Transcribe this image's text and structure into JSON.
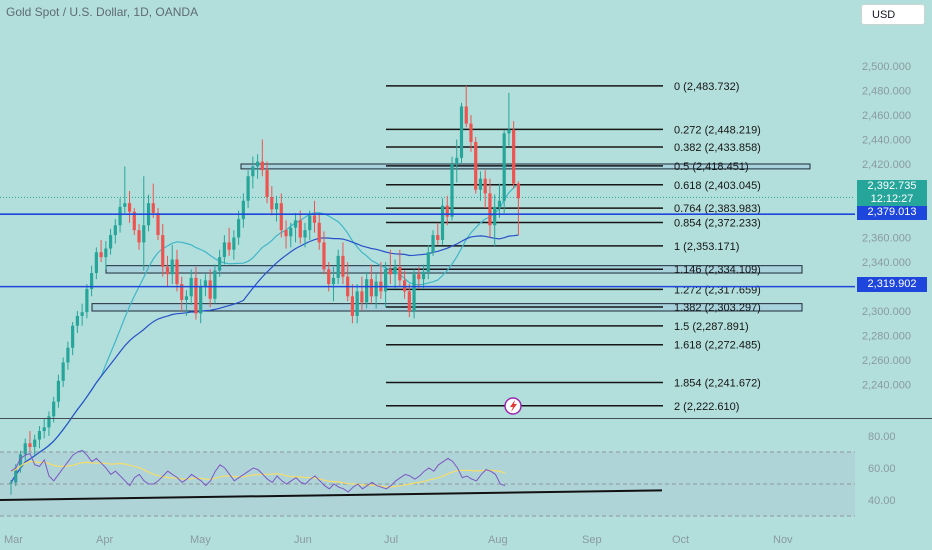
{
  "header": {
    "symbol_title": "Gold Spot / U.S. Dollar, 1D, OANDA",
    "currency_label": "USD"
  },
  "price_tags": {
    "current_price": "2,392.735",
    "countdown": "12:12:27",
    "line_price_1": "2,379.013",
    "line_price_2": "2,319.902"
  },
  "colors": {
    "background": "#b2dfdb",
    "up_candle": "#26a69a",
    "down_candle": "#ef5350",
    "horizontal_line": "#1e46dc",
    "ma_fast": "#3fb6c9",
    "ma_slow": "#2850c8",
    "rsi_line": "#7e57c2",
    "rsi_ma": "#f5dd6b"
  },
  "chart_data": {
    "type": "candlestick",
    "symbol": "Gold Spot / U.S. Dollar",
    "interval": "1D",
    "source": "OANDA",
    "y_axis_ticks": [
      "2,500.000",
      "2,480.000",
      "2,460.000",
      "2,440.000",
      "2,420.000",
      "2,400.000",
      "2,380.000",
      "2,360.000",
      "2,340.000",
      "2,320.000",
      "2,300.000",
      "2,280.000",
      "2,260.000",
      "2,240.000"
    ],
    "x_axis_ticks": [
      "Mar",
      "Apr",
      "May",
      "Jun",
      "Jul",
      "Aug",
      "Sep",
      "Oct",
      "Nov"
    ],
    "fib_levels": [
      {
        "label": "0 (2,483.732)",
        "value": 2483.732
      },
      {
        "label": "0.272 (2,448.219)",
        "value": 2448.219
      },
      {
        "label": "0.382 (2,433.858)",
        "value": 2433.858
      },
      {
        "label": "0.5 (2,418.451)",
        "value": 2418.451
      },
      {
        "label": "0.618 (2,403.045)",
        "value": 2403.045
      },
      {
        "label": "0.764 (2,383.983)",
        "value": 2383.983
      },
      {
        "label": "0.854 (2,372.233)",
        "value": 2372.233
      },
      {
        "label": "1 (2,353.171)",
        "value": 2353.171
      },
      {
        "label": "1.146 (2,334.109)",
        "value": 2334.109
      },
      {
        "label": "1.272 (2,317.659)",
        "value": 2317.659
      },
      {
        "label": "1.382 (2,303.297)",
        "value": 2303.297
      },
      {
        "label": "1.5 (2,287.891)",
        "value": 2287.891
      },
      {
        "label": "1.618 (2,272.485)",
        "value": 2272.485
      },
      {
        "label": "1.854 (2,241.672)",
        "value": 2241.672
      },
      {
        "label": "2 (2,222.610)",
        "value": 2222.61
      }
    ],
    "horizontal_lines": [
      2379.013,
      2319.902
    ],
    "current_price": 2392.735,
    "zones": [
      {
        "low": 2416,
        "high": 2420
      },
      {
        "low": 2331,
        "high": 2337
      },
      {
        "low": 2300,
        "high": 2306
      }
    ],
    "candles": [
      [
        2159,
        2162,
        2150,
        2160
      ],
      [
        2160,
        2175,
        2157,
        2172
      ],
      [
        2172,
        2186,
        2168,
        2183
      ],
      [
        2183,
        2196,
        2178,
        2192
      ],
      [
        2192,
        2202,
        2185,
        2189
      ],
      [
        2189,
        2199,
        2182,
        2195
      ],
      [
        2195,
        2206,
        2188,
        2202
      ],
      [
        2202,
        2212,
        2196,
        2205
      ],
      [
        2205,
        2218,
        2198,
        2214
      ],
      [
        2214,
        2230,
        2209,
        2226
      ],
      [
        2226,
        2248,
        2221,
        2243
      ],
      [
        2243,
        2262,
        2238,
        2258
      ],
      [
        2258,
        2275,
        2252,
        2270
      ],
      [
        2270,
        2291,
        2264,
        2288
      ],
      [
        2288,
        2300,
        2282,
        2296
      ],
      [
        2296,
        2306,
        2288,
        2299
      ],
      [
        2299,
        2322,
        2294,
        2318
      ],
      [
        2318,
        2337,
        2312,
        2331
      ],
      [
        2331,
        2352,
        2326,
        2348
      ],
      [
        2348,
        2358,
        2340,
        2344
      ],
      [
        2344,
        2357,
        2334,
        2351
      ],
      [
        2351,
        2367,
        2346,
        2362
      ],
      [
        2362,
        2375,
        2355,
        2370
      ],
      [
        2370,
        2392,
        2364,
        2385
      ],
      [
        2385,
        2418,
        2380,
        2388
      ],
      [
        2388,
        2398,
        2372,
        2381
      ],
      [
        2381,
        2384,
        2362,
        2366
      ],
      [
        2366,
        2371,
        2350,
        2356
      ],
      [
        2356,
        2410,
        2333,
        2370
      ],
      [
        2370,
        2395,
        2365,
        2388
      ],
      [
        2388,
        2404,
        2376,
        2380
      ],
      [
        2380,
        2384,
        2358,
        2362
      ],
      [
        2362,
        2371,
        2328,
        2336
      ],
      [
        2336,
        2345,
        2320,
        2330
      ],
      [
        2330,
        2354,
        2322,
        2342
      ],
      [
        2342,
        2350,
        2316,
        2322
      ],
      [
        2322,
        2328,
        2300,
        2309
      ],
      [
        2309,
        2317,
        2296,
        2312
      ],
      [
        2312,
        2334,
        2305,
        2327
      ],
      [
        2327,
        2336,
        2293,
        2298
      ],
      [
        2298,
        2326,
        2290,
        2320
      ],
      [
        2320,
        2330,
        2312,
        2325
      ],
      [
        2325,
        2334,
        2303,
        2310
      ],
      [
        2310,
        2338,
        2306,
        2333
      ],
      [
        2333,
        2350,
        2328,
        2344
      ],
      [
        2344,
        2362,
        2338,
        2356
      ],
      [
        2356,
        2368,
        2345,
        2350
      ],
      [
        2350,
        2366,
        2342,
        2360
      ],
      [
        2360,
        2382,
        2354,
        2375
      ],
      [
        2375,
        2396,
        2368,
        2390
      ],
      [
        2390,
        2415,
        2384,
        2410
      ],
      [
        2410,
        2426,
        2400,
        2418
      ],
      [
        2418,
        2428,
        2408,
        2422
      ],
      [
        2422,
        2440,
        2410,
        2415
      ],
      [
        2415,
        2422,
        2388,
        2393
      ],
      [
        2393,
        2402,
        2378,
        2383
      ],
      [
        2383,
        2394,
        2373,
        2388
      ],
      [
        2388,
        2396,
        2360,
        2366
      ],
      [
        2366,
        2374,
        2351,
        2361
      ],
      [
        2361,
        2372,
        2352,
        2368
      ],
      [
        2368,
        2380,
        2356,
        2374
      ],
      [
        2374,
        2382,
        2355,
        2360
      ],
      [
        2360,
        2372,
        2352,
        2366
      ],
      [
        2366,
        2382,
        2358,
        2378
      ],
      [
        2378,
        2390,
        2364,
        2372
      ],
      [
        2372,
        2380,
        2350,
        2356
      ],
      [
        2356,
        2365,
        2330,
        2334
      ],
      [
        2334,
        2340,
        2316,
        2322
      ],
      [
        2322,
        2336,
        2308,
        2327
      ],
      [
        2327,
        2350,
        2322,
        2345
      ],
      [
        2345,
        2356,
        2322,
        2328
      ],
      [
        2328,
        2340,
        2308,
        2312
      ],
      [
        2312,
        2322,
        2290,
        2296
      ],
      [
        2296,
        2322,
        2290,
        2316
      ],
      [
        2316,
        2328,
        2300,
        2307
      ],
      [
        2307,
        2332,
        2302,
        2326
      ],
      [
        2326,
        2338,
        2306,
        2312
      ],
      [
        2312,
        2330,
        2302,
        2324
      ],
      [
        2324,
        2340,
        2310,
        2316
      ],
      [
        2316,
        2340,
        2303,
        2334
      ],
      [
        2334,
        2350,
        2322,
        2330
      ],
      [
        2330,
        2342,
        2318,
        2336
      ],
      [
        2336,
        2350,
        2320,
        2325
      ],
      [
        2325,
        2333,
        2310,
        2316
      ],
      [
        2316,
        2322,
        2295,
        2300
      ],
      [
        2300,
        2334,
        2294,
        2330
      ],
      [
        2330,
        2336,
        2318,
        2326
      ],
      [
        2326,
        2338,
        2318,
        2332
      ],
      [
        2332,
        2354,
        2326,
        2348
      ],
      [
        2348,
        2366,
        2345,
        2362
      ],
      [
        2362,
        2372,
        2354,
        2358
      ],
      [
        2358,
        2392,
        2354,
        2386
      ],
      [
        2386,
        2394,
        2370,
        2377
      ],
      [
        2377,
        2426,
        2374,
        2420
      ],
      [
        2420,
        2440,
        2405,
        2425
      ],
      [
        2425,
        2470,
        2420,
        2467
      ],
      [
        2467,
        2484,
        2450,
        2453
      ],
      [
        2453,
        2460,
        2430,
        2438
      ],
      [
        2438,
        2442,
        2396,
        2399
      ],
      [
        2399,
        2414,
        2390,
        2408
      ],
      [
        2408,
        2415,
        2384,
        2396
      ],
      [
        2396,
        2408,
        2360,
        2370
      ],
      [
        2370,
        2395,
        2353,
        2385
      ],
      [
        2385,
        2404,
        2376,
        2390
      ],
      [
        2390,
        2448,
        2380,
        2445
      ],
      [
        2445,
        2478,
        2435,
        2448
      ],
      [
        2448,
        2455,
        2400,
        2404
      ],
      [
        2404,
        2406,
        2362,
        2392
      ]
    ],
    "rsi": {
      "levels": [
        70,
        50,
        30
      ],
      "y_ticks": [
        "80.00",
        "60.00",
        "40.00"
      ],
      "values": [
        58,
        60,
        66,
        68,
        69,
        62,
        61,
        65,
        55,
        52,
        56,
        60,
        64,
        68,
        70,
        71,
        68,
        64,
        66,
        63,
        60,
        56,
        58,
        55,
        52,
        49,
        54,
        56,
        52,
        50,
        50,
        52,
        55,
        58,
        56,
        54,
        51,
        53,
        56,
        54,
        52,
        49,
        52,
        58,
        62,
        60,
        56,
        52,
        54,
        56,
        58,
        60,
        59,
        56,
        53,
        51,
        55,
        52,
        50,
        52,
        54,
        51,
        50,
        53,
        55,
        52,
        49,
        47,
        50,
        48,
        47,
        45,
        48,
        50,
        47,
        49,
        51,
        49,
        48,
        47,
        49,
        52,
        54,
        56,
        55,
        53,
        55,
        58,
        60,
        58,
        62,
        64,
        66,
        64,
        60,
        54,
        55,
        53,
        52,
        56,
        59,
        58,
        56,
        50,
        49
      ]
    }
  }
}
